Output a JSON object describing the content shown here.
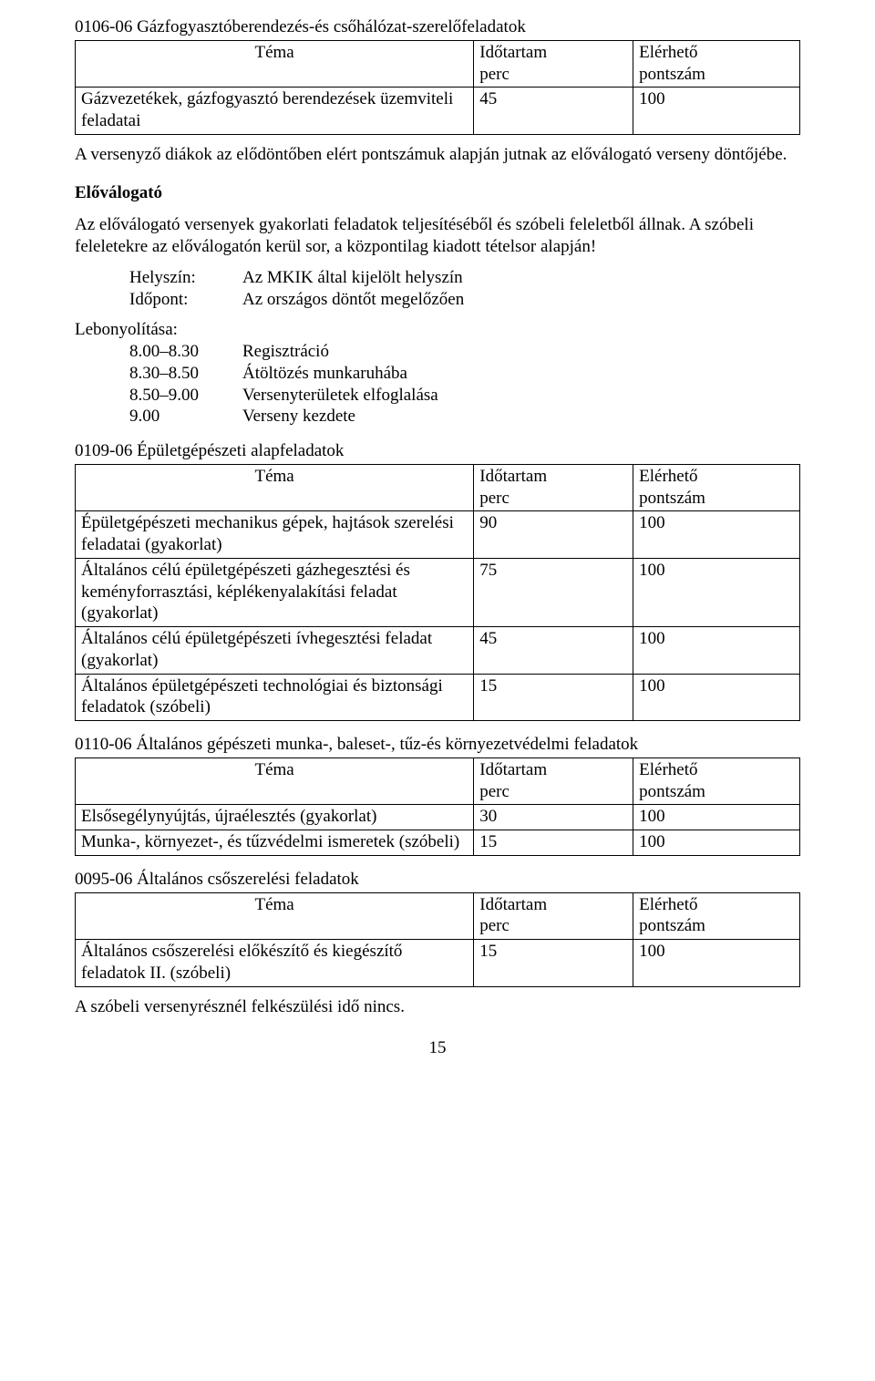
{
  "section1": {
    "title": "0106-06 Gázfogyasztóberendezés-és csőhálózat-szerelőfeladatok"
  },
  "table_headers": {
    "tema": "Téma",
    "idotartam": "Időtartam",
    "perc": "perc",
    "elerheto": "Elérhető",
    "pontszam": "pontszám"
  },
  "table1_rows": [
    {
      "tema": "Gázvezetékek, gázfogyasztó berendezések üzemviteli feladatai",
      "ido": "45",
      "pont": "100"
    }
  ],
  "para1": "A versenyző diákok az elődöntőben elért pontszámuk alapján jutnak az előválogató verseny döntőjébe.",
  "elovalogato_heading": "Előválogató",
  "para2": "Az előválogató versenyek gyakorlati feladatok teljesítéséből és szóbeli feleletből állnak. A szóbeli feleletekre az előválogatón kerül sor, a központilag kiadott tételsor alapján!",
  "kv": {
    "helyszin_key": "Helyszín:",
    "helyszin_val": "Az MKIK által kijelölt helyszín",
    "idopont_key": "Időpont:",
    "idopont_val": "Az országos döntőt megelőzően"
  },
  "lebony": {
    "heading": "Lebonyolítása:",
    "rows": [
      {
        "time": "8.00–8.30",
        "text": "Regisztráció"
      },
      {
        "time": "8.30–8.50",
        "text": "Átöltözés munkaruhába"
      },
      {
        "time": "8.50–9.00",
        "text": "Versenyterületek elfoglalása"
      },
      {
        "time": "9.00",
        "text": "Verseny kezdete"
      }
    ]
  },
  "section2": {
    "title": "0109-06 Épületgépészeti alapfeladatok"
  },
  "table2_rows": [
    {
      "tema": "Épületgépészeti mechanikus gépek, hajtások szerelési feladatai (gyakorlat)",
      "ido": "90",
      "pont": "100"
    },
    {
      "tema": "Általános célú épületgépészeti gázhegesztési és keményforrasztási, képlékenyalakítási feladat (gyakorlat)",
      "ido": "75",
      "pont": "100"
    },
    {
      "tema": "Általános célú épületgépészeti ívhegesztési feladat (gyakorlat)",
      "ido": "45",
      "pont": "100"
    },
    {
      "tema": "Általános épületgépészeti technológiai és biztonsági feladatok (szóbeli)",
      "ido": "15",
      "pont": "100"
    }
  ],
  "section3": {
    "title": "0110-06 Általános gépészeti munka-, baleset-, tűz-és környezetvédelmi feladatok"
  },
  "table3_rows": [
    {
      "tema": "Elsősegélynyújtás, újraélesztés (gyakorlat)",
      "ido": "30",
      "pont": "100"
    },
    {
      "tema": "Munka-, környezet-, és tűzvédelmi ismeretek (szóbeli)",
      "ido": "15",
      "pont": "100"
    }
  ],
  "section4": {
    "title": "0095-06 Általános csőszerelési feladatok"
  },
  "table4_rows": [
    {
      "tema": "Általános csőszerelési előkészítő és kiegészítő feladatok II. (szóbeli)",
      "ido": "15",
      "pont": "100"
    }
  ],
  "closing": "A szóbeli versenyrésznél felkészülési idő nincs.",
  "page_number": "15"
}
